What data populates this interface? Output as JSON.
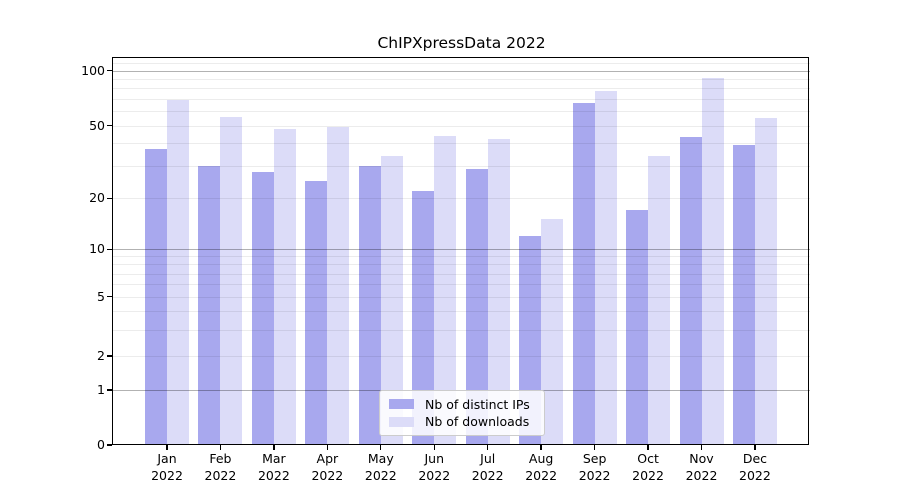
{
  "title": "ChIPXpressData 2022",
  "colors": {
    "distinct_ips_bar": "#a8a8ee",
    "downloads_bar": "#dcdcf8"
  },
  "chart_data": {
    "type": "bar",
    "title": "ChIPXpressData 2022",
    "categories": [
      "Jan",
      "Feb",
      "Mar",
      "Apr",
      "May",
      "Jun",
      "Jul",
      "Aug",
      "Sep",
      "Oct",
      "Nov",
      "Dec"
    ],
    "year_label": "2022",
    "series": [
      {
        "name": "Nb of distinct IPs",
        "color": "#a8a8ee",
        "values": [
          37,
          30,
          28,
          25,
          30,
          22,
          29,
          12,
          66,
          17,
          43,
          39
        ]
      },
      {
        "name": "Nb of downloads",
        "color": "#dcdcf8",
        "values": [
          69,
          56,
          48,
          49,
          34,
          44,
          42,
          15,
          77,
          34,
          91,
          55
        ]
      }
    ],
    "yscale": "symlog",
    "yticks": [
      0,
      1,
      2,
      5,
      10,
      20,
      50,
      100
    ],
    "minor_yticks": [
      2,
      3,
      4,
      5,
      6,
      7,
      8,
      9,
      20,
      30,
      40,
      50,
      60,
      70,
      80,
      90,
      110
    ],
    "major_gridlines": [
      1,
      10,
      100
    ],
    "ylim": [
      0,
      118
    ],
    "xlabel": "",
    "ylabel": "",
    "grid": true,
    "legend_position": "lower center"
  }
}
